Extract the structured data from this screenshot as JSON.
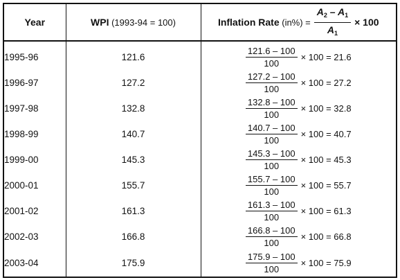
{
  "header": {
    "year": "Year",
    "wpi_bold": "WPI",
    "wpi_base": "(1993-94 = 100)",
    "inflation_bold": "Inflation Rate",
    "inflation_unit": "(in%) =",
    "formula_num_a": "A",
    "formula_num_a_sub": "2",
    "formula_num_minus": " – ",
    "formula_num_b": "A",
    "formula_num_b_sub": "1",
    "formula_den": "A",
    "formula_den_sub": "1",
    "formula_tail": "× 100"
  },
  "rows": [
    {
      "year": "1995-96",
      "wpi": "121.6",
      "num": "121.6 – 100",
      "den": "100",
      "result": "× 100 = 21.6"
    },
    {
      "year": "1996-97",
      "wpi": "127.2",
      "num": "127.2 – 100",
      "den": "100",
      "result": "× 100 = 27.2"
    },
    {
      "year": "1997-98",
      "wpi": "132.8",
      "num": "132.8 – 100",
      "den": "100",
      "result": "× 100 = 32.8"
    },
    {
      "year": "1998-99",
      "wpi": "140.7",
      "num": "140.7 – 100",
      "den": "100",
      "result": "× 100 = 40.7"
    },
    {
      "year": "1999-00",
      "wpi": "145.3",
      "num": "145.3 – 100",
      "den": "100",
      "result": "× 100 = 45.3"
    },
    {
      "year": "2000-01",
      "wpi": "155.7",
      "num": "155.7 – 100",
      "den": "100",
      "result": "× 100 = 55.7"
    },
    {
      "year": "2001-02",
      "wpi": "161.3",
      "num": "161.3 – 100",
      "den": "100",
      "result": "× 100 = 61.3"
    },
    {
      "year": "2002-03",
      "wpi": "166.8",
      "num": "166.8 – 100",
      "den": "100",
      "result": "× 100 = 66.8"
    },
    {
      "year": "2003-04",
      "wpi": "175.9",
      "num": "175.9 – 100",
      "den": "100",
      "result": "× 100 = 75.9"
    }
  ]
}
